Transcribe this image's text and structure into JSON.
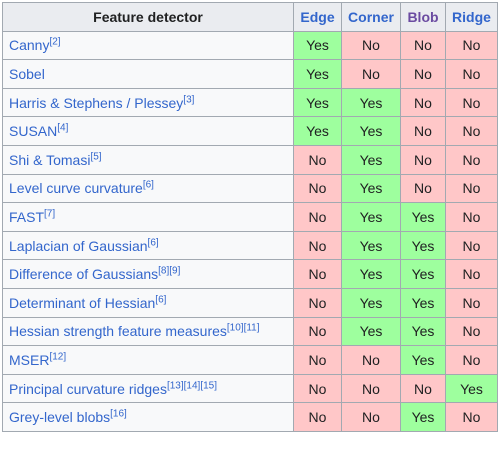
{
  "header": {
    "detector": "Feature detector",
    "edge": "Edge",
    "corner": "Corner",
    "blob": "Blob",
    "ridge": "Ridge",
    "colors": {
      "edge": "#3366cc",
      "corner": "#3366cc",
      "blob": "#6b4ba1",
      "ridge": "#3366cc"
    }
  },
  "colors": {
    "yes": "#9eff9e",
    "no": "#ffc7c8",
    "link": "#3366cc"
  },
  "rows": [
    {
      "name": "Canny",
      "ref": "[2]",
      "edge": "Yes",
      "corner": "No",
      "blob": "No",
      "ridge": "No"
    },
    {
      "name": "Sobel",
      "ref": "",
      "edge": "Yes",
      "corner": "No",
      "blob": "No",
      "ridge": "No"
    },
    {
      "name": "Harris & Stephens / Plessey",
      "ref": "[3]",
      "edge": "Yes",
      "corner": "Yes",
      "blob": "No",
      "ridge": "No"
    },
    {
      "name": "SUSAN",
      "ref": "[4]",
      "edge": "Yes",
      "corner": "Yes",
      "blob": "No",
      "ridge": "No"
    },
    {
      "name": "Shi & Tomasi",
      "ref": "[5]",
      "edge": "No",
      "corner": "Yes",
      "blob": "No",
      "ridge": "No"
    },
    {
      "name": "Level curve curvature",
      "ref": "[6]",
      "edge": "No",
      "corner": "Yes",
      "blob": "No",
      "ridge": "No"
    },
    {
      "name": "FAST",
      "ref": "[7]",
      "edge": "No",
      "corner": "Yes",
      "blob": "Yes",
      "ridge": "No"
    },
    {
      "name": "Laplacian of Gaussian",
      "ref": "[6]",
      "edge": "No",
      "corner": "Yes",
      "blob": "Yes",
      "ridge": "No"
    },
    {
      "name": "Difference of Gaussians",
      "ref": "[8][9]",
      "edge": "No",
      "corner": "Yes",
      "blob": "Yes",
      "ridge": "No"
    },
    {
      "name": "Determinant of Hessian",
      "ref": "[6]",
      "edge": "No",
      "corner": "Yes",
      "blob": "Yes",
      "ridge": "No"
    },
    {
      "name": "Hessian strength feature measures",
      "ref": "[10][11]",
      "edge": "No",
      "corner": "Yes",
      "blob": "Yes",
      "ridge": "No"
    },
    {
      "name": "MSER",
      "ref": "[12]",
      "edge": "No",
      "corner": "No",
      "blob": "Yes",
      "ridge": "No"
    },
    {
      "name": "Principal curvature ridges",
      "ref": "[13][14][15]",
      "edge": "No",
      "corner": "No",
      "blob": "No",
      "ridge": "Yes"
    },
    {
      "name": "Grey-level blobs",
      "ref": "[16]",
      "edge": "No",
      "corner": "No",
      "blob": "Yes",
      "ridge": "No"
    }
  ]
}
